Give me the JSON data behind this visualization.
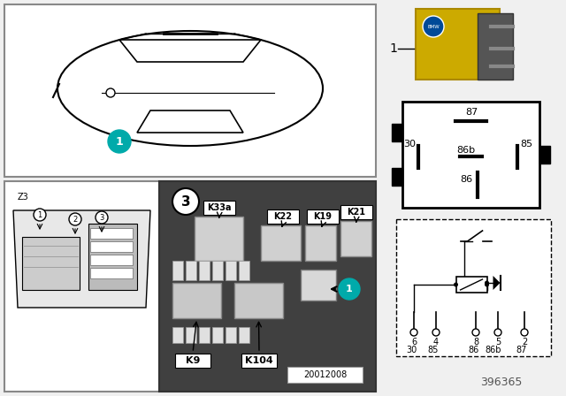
{
  "bg_color": "#f0f0f0",
  "border_color": "#888888",
  "teal_color": "#00aaaa",
  "black": "#000000",
  "white": "#ffffff",
  "yellow_relay": "#d4aa00",
  "part_number": "396365",
  "image_code": "20012008",
  "relay_labels": [
    "K33a",
    "K22",
    "K19",
    "K21",
    "K9",
    "K104"
  ],
  "pin_labels_top": [
    "87",
    "86b",
    "85",
    "30",
    "86"
  ],
  "circuit_pins_top": [
    "6",
    "4",
    "8",
    "5",
    "2"
  ],
  "circuit_pins_bottom": [
    "30",
    "85",
    "86",
    "86b",
    "87"
  ],
  "marker_label": "1",
  "section3_label": "3",
  "z3_label": "Z3"
}
